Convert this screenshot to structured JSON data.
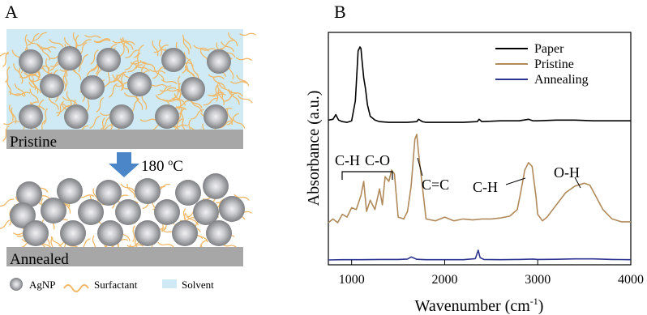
{
  "panel_a": {
    "label": "A",
    "pristine_label": "Pristine",
    "annealed_label": "Annealed",
    "arrow_label": "180 °C",
    "arrow_label_main": "180 ",
    "arrow_label_sup": "o",
    "arrow_label_unit": "C",
    "legend": [
      {
        "label": "AgNP",
        "icon": "nanoparticle-icon"
      },
      {
        "label": "Surfactant",
        "icon": "surfactant-wave-icon"
      },
      {
        "label": "Solvent",
        "icon": "solvent-swatch-icon"
      }
    ],
    "colors": {
      "solvent": "#cfeaf4",
      "surfactant": "#f0b868",
      "particle_dark": "#7a7c80",
      "particle_light": "#e8e8ea",
      "substrate": "#a7a7a7",
      "arrow": "#4a86c8"
    }
  },
  "panel_b": {
    "label": "B",
    "chart_data": {
      "type": "line",
      "xlabel": "Wavenumber (cm⁻¹)",
      "xlabel_main": "Wavenumber (cm",
      "xlabel_sup": "-1",
      "xlabel_close": ")",
      "ylabel": "Absorbance (a.u.)",
      "xlim": [
        750,
        4000
      ],
      "xticks": [
        1000,
        2000,
        3000,
        4000
      ],
      "yticks_shown": false,
      "legend_position": "top-right",
      "series": [
        {
          "name": "Paper",
          "color": "#000000",
          "x": [
            750,
            800,
            830,
            860,
            900,
            950,
            1000,
            1040,
            1070,
            1090,
            1100,
            1110,
            1130,
            1150,
            1170,
            1200,
            1250,
            1300,
            1400,
            1500,
            1600,
            1700,
            1720,
            1760,
            1800,
            2000,
            2200,
            2350,
            2370,
            2400,
            2600,
            2800,
            2900,
            2950,
            3000,
            3200,
            3400,
            3600,
            3800,
            4000
          ],
          "y": [
            0.05,
            0.06,
            0.12,
            0.05,
            0.03,
            0.02,
            0.04,
            0.3,
            0.95,
            1.0,
            0.98,
            0.85,
            0.6,
            0.45,
            0.25,
            0.1,
            0.05,
            0.03,
            0.02,
            0.02,
            0.02,
            0.03,
            0.06,
            0.03,
            0.02,
            0.02,
            0.02,
            0.03,
            0.06,
            0.03,
            0.04,
            0.04,
            0.06,
            0.04,
            0.04,
            0.05,
            0.05,
            0.04,
            0.04,
            0.04
          ]
        },
        {
          "name": "Pristine",
          "color": "#b08a5b",
          "x": [
            750,
            800,
            850,
            900,
            950,
            1000,
            1050,
            1100,
            1130,
            1160,
            1200,
            1250,
            1300,
            1330,
            1360,
            1400,
            1430,
            1460,
            1500,
            1560,
            1600,
            1640,
            1680,
            1700,
            1720,
            1760,
            1800,
            1900,
            2000,
            2100,
            2200,
            2300,
            2400,
            2500,
            2600,
            2700,
            2780,
            2820,
            2860,
            2900,
            2940,
            2980,
            3000,
            3050,
            3100,
            3200,
            3300,
            3400,
            3500,
            3560,
            3620,
            3700,
            3800,
            3900,
            4000
          ],
          "y": [
            0.06,
            0.1,
            0.06,
            0.15,
            0.12,
            0.22,
            0.2,
            0.35,
            0.5,
            0.18,
            0.3,
            0.2,
            0.42,
            0.25,
            0.55,
            0.5,
            0.62,
            0.58,
            0.12,
            0.1,
            0.18,
            0.45,
            0.95,
            1.0,
            0.8,
            0.45,
            0.1,
            0.08,
            0.12,
            0.08,
            0.1,
            0.09,
            0.1,
            0.1,
            0.11,
            0.13,
            0.2,
            0.4,
            0.62,
            0.7,
            0.66,
            0.35,
            0.15,
            0.08,
            0.12,
            0.25,
            0.38,
            0.45,
            0.48,
            0.46,
            0.35,
            0.2,
            0.1,
            0.07,
            0.07
          ]
        },
        {
          "name": "Annealing",
          "color": "#2e3590",
          "x": [
            750,
            900,
            1100,
            1300,
            1500,
            1600,
            1640,
            1700,
            1800,
            2000,
            2200,
            2330,
            2360,
            2380,
            2420,
            2600,
            2800,
            2950,
            3000,
            3200,
            3400,
            3600,
            3800,
            4000
          ],
          "y": [
            0.04,
            0.05,
            0.05,
            0.06,
            0.06,
            0.08,
            0.18,
            0.07,
            0.05,
            0.05,
            0.05,
            0.1,
            0.5,
            0.15,
            0.06,
            0.05,
            0.06,
            0.08,
            0.06,
            0.07,
            0.09,
            0.09,
            0.06,
            0.05
          ]
        }
      ],
      "annotations": [
        {
          "text": "C-H",
          "x": 980,
          "series": "Pristine"
        },
        {
          "text": "C-O",
          "x": 1320,
          "series": "Pristine"
        },
        {
          "text": "C=C",
          "x": 1700,
          "series": "Pristine"
        },
        {
          "text": "C-H",
          "x": 2880,
          "series": "Pristine"
        },
        {
          "text": "O-H",
          "x": 3400,
          "series": "Pristine"
        }
      ]
    }
  }
}
